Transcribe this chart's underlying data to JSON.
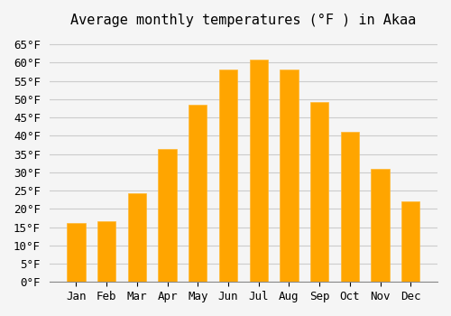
{
  "title": "Average monthly temperatures (°F ) in Akaa",
  "months": [
    "Jan",
    "Feb",
    "Mar",
    "Apr",
    "May",
    "Jun",
    "Jul",
    "Aug",
    "Sep",
    "Oct",
    "Nov",
    "Dec"
  ],
  "values": [
    16.2,
    16.5,
    24.3,
    36.3,
    48.5,
    58.0,
    60.8,
    58.0,
    49.3,
    41.0,
    30.9,
    22.0
  ],
  "bar_color": "#FFA500",
  "bar_edge_color": "#FFB833",
  "background_color": "#F5F5F5",
  "grid_color": "#CCCCCC",
  "ylim": [
    0,
    67
  ],
  "yticks": [
    0,
    5,
    10,
    15,
    20,
    25,
    30,
    35,
    40,
    45,
    50,
    55,
    60,
    65
  ],
  "title_fontsize": 11,
  "tick_fontsize": 9,
  "tick_font": "monospace"
}
